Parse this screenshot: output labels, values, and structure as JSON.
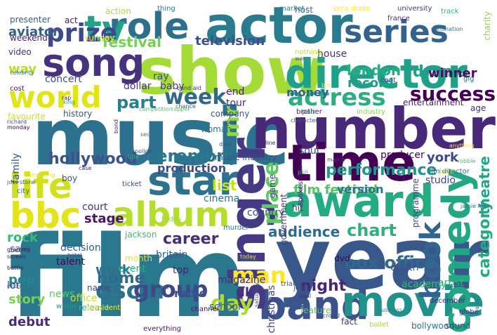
{
  "words": [
    {
      "text": "film",
      "color": "#2a788e"
    },
    {
      "text": "music",
      "color": "#2c728e"
    },
    {
      "text": "year",
      "color": "#38588c"
    },
    {
      "text": "show",
      "color": "#a5db36"
    },
    {
      "text": "number",
      "color": "#482878"
    },
    {
      "text": "actor",
      "color": "#287c8e"
    },
    {
      "text": "time",
      "color": "#440154"
    },
    {
      "text": "band",
      "color": "#3b528b"
    },
    {
      "text": "movie",
      "color": "#21918c"
    },
    {
      "text": "award",
      "color": "#25ab82"
    },
    {
      "text": "director",
      "color": "#1fa088"
    },
    {
      "text": "star",
      "color": "#2c728e"
    },
    {
      "text": "song",
      "color": "#46327e"
    },
    {
      "text": "singer",
      "color": "#443a83"
    },
    {
      "text": "album",
      "color": "#b5de2b"
    },
    {
      "text": "bbc",
      "color": "#e2e418"
    },
    {
      "text": "life",
      "color": "#d0e11c"
    },
    {
      "text": "role",
      "color": "#2d708e"
    },
    {
      "text": "tv",
      "color": "#20a386"
    },
    {
      "text": "series",
      "color": "#33638d"
    },
    {
      "text": "comedy",
      "color": "#22a785"
    },
    {
      "text": "world",
      "color": "#e2e418"
    },
    {
      "text": "prize",
      "color": "#3e4989"
    },
    {
      "text": "oscar",
      "color": "#2e6e8e"
    },
    {
      "text": "actress",
      "color": "#2ab07f"
    },
    {
      "text": "book",
      "color": "#32658e"
    },
    {
      "text": "place",
      "color": "#5ec962"
    },
    {
      "text": "success",
      "color": "#440154"
    },
    {
      "text": "week",
      "color": "#31688e"
    },
    {
      "text": "group",
      "color": "#3e4989"
    },
    {
      "text": "ceremony",
      "color": "#2a788e"
    },
    {
      "text": "hollywood",
      "color": "#3b528b"
    },
    {
      "text": "category",
      "color": "#25ab82"
    },
    {
      "text": "day",
      "color": "#addc30"
    },
    {
      "text": "man",
      "color": "#fde725"
    },
    {
      "text": "mr",
      "color": "#93d741"
    },
    {
      "text": "part",
      "color": "#26818e"
    },
    {
      "text": "performance",
      "color": "#1f968b"
    },
    {
      "text": "career",
      "color": "#472d7b"
    },
    {
      "text": "box office",
      "color": "#31688e"
    },
    {
      "text": "chart",
      "color": "#2db27d"
    },
    {
      "text": "home",
      "color": "#30698e"
    },
    {
      "text": "festival",
      "color": "#75d054"
    },
    {
      "text": "television",
      "color": "#3b528b"
    },
    {
      "text": "london",
      "color": "#26ad81"
    },
    {
      "text": "drama",
      "color": "#1fa088"
    },
    {
      "text": "winner",
      "color": "#471063"
    },
    {
      "text": "record",
      "color": "#1f9f88"
    },
    {
      "text": "theatre",
      "color": "#22a785"
    },
    {
      "text": "york",
      "color": "#3f4788"
    },
    {
      "text": "stage",
      "color": "#481467"
    },
    {
      "text": "work",
      "color": "#2e6f8e"
    },
    {
      "text": "night",
      "color": "#482576"
    },
    {
      "text": "audience",
      "color": "#31688e"
    },
    {
      "text": "aviator",
      "color": "#34608d"
    },
    {
      "text": "money",
      "color": "#34618d"
    },
    {
      "text": "list",
      "color": "#c2df23"
    },
    {
      "text": "film festival",
      "color": "#52c569"
    },
    {
      "text": "version",
      "color": "#2c728e"
    },
    {
      "text": "production",
      "color": "#3e4989"
    },
    {
      "text": "radio",
      "color": "#3a548c"
    },
    {
      "text": "rock",
      "color": "#38b977"
    },
    {
      "text": "pop",
      "color": "#25838e"
    },
    {
      "text": "story",
      "color": "#7ad151"
    },
    {
      "text": "debut",
      "color": "#472c7a"
    },
    {
      "text": "uk",
      "color": "#46307e"
    },
    {
      "text": "way",
      "color": "#b8de29"
    },
    {
      "text": "dollar",
      "color": "#453882"
    },
    {
      "text": "baby",
      "color": "#433e85"
    },
    {
      "text": "ray",
      "color": "#3b528b"
    },
    {
      "text": "concert",
      "color": "#3e4c8a"
    },
    {
      "text": "video",
      "color": "#472c7a"
    },
    {
      "text": "end",
      "color": "#482071"
    },
    {
      "text": "tour",
      "color": "#46307e"
    },
    {
      "text": "soul",
      "color": "#3c4f8a"
    },
    {
      "text": "studio",
      "color": "#3f4788"
    },
    {
      "text": "court",
      "color": "#472d7b"
    },
    {
      "text": "producer",
      "color": "#440154"
    },
    {
      "text": "decision",
      "color": "#365c8d"
    },
    {
      "text": "talent",
      "color": "#450457"
    },
    {
      "text": "event",
      "color": "#26ad81"
    },
    {
      "text": "britain",
      "color": "#375a8c"
    },
    {
      "text": "top",
      "color": "#482374"
    },
    {
      "text": "house",
      "color": "#472f7d"
    },
    {
      "text": "cinema",
      "color": "#2c728e"
    },
    {
      "text": "hit",
      "color": "#481c6e"
    },
    {
      "text": "country",
      "color": "#404688"
    },
    {
      "text": "magazine",
      "color": "#482475"
    },
    {
      "text": "school",
      "color": "#375b8d"
    },
    {
      "text": "artist",
      "color": "#31b57b"
    },
    {
      "text": "academy",
      "color": "#3aba76"
    },
    {
      "text": "death",
      "color": "#3b528b"
    },
    {
      "text": "christmas",
      "color": "#424186"
    },
    {
      "text": "lot",
      "color": "#404588"
    },
    {
      "text": "news",
      "color": "#58c765"
    },
    {
      "text": "office",
      "color": "#c8e020"
    },
    {
      "text": "release",
      "color": "#3aba76"
    },
    {
      "text": "sale",
      "color": "#31678e"
    },
    {
      "text": "family",
      "color": "#3b528b"
    },
    {
      "text": "act",
      "color": "#481668"
    },
    {
      "text": "weekend",
      "color": "#481769"
    },
    {
      "text": "sunday",
      "color": "#ffe724"
    },
    {
      "text": "action",
      "color": "#b0dd2f"
    },
    {
      "text": "entertainment",
      "color": "#481a6c"
    },
    {
      "text": "age",
      "color": "#472a7a"
    },
    {
      "text": "programme",
      "color": "#414487"
    },
    {
      "text": "jackson",
      "color": "#3fbc73"
    },
    {
      "text": "month",
      "color": "#e7e419"
    },
    {
      "text": "dvd",
      "color": "#440154"
    },
    {
      "text": "game",
      "color": "#433e85"
    },
    {
      "text": "charity",
      "color": "#93d741"
    },
    {
      "text": "history",
      "color": "#3b528b"
    },
    {
      "text": "favourite",
      "color": "#cde11d"
    },
    {
      "text": "name",
      "color": "#3e4a89"
    },
    {
      "text": "writer",
      "color": "#1f998a"
    },
    {
      "text": "channel",
      "color": "#470e61"
    },
    {
      "text": "music industry",
      "color": "#3e4c8a"
    },
    {
      "text": "woman",
      "color": "#2a788e"
    },
    {
      "text": "company",
      "color": "#3a548c"
    },
    {
      "text": "government",
      "color": "#443983"
    },
    {
      "text": "industry",
      "color": "#8bd646"
    },
    {
      "text": "brother",
      "color": "#48186a"
    },
    {
      "text": "pair",
      "color": "#2a768e"
    },
    {
      "text": "film director",
      "color": "#2c718e"
    },
    {
      "text": "love",
      "color": "#a8db34"
    },
    {
      "text": "fact",
      "color": "#472c7a"
    },
    {
      "text": "ballet",
      "color": "#a0da39"
    },
    {
      "text": "bollywood",
      "color": "#2b748e"
    },
    {
      "text": "sound",
      "color": "#3f4889"
    },
    {
      "text": "globe",
      "color": "#46337f"
    },
    {
      "text": "trial",
      "color": "#38588c"
    },
    {
      "text": "feature",
      "color": "#5ec962"
    },
    {
      "text": "president",
      "color": "#fde725"
    },
    {
      "text": "everything",
      "color": "#481668"
    },
    {
      "text": "murder",
      "color": "#2c728e"
    },
    {
      "text": "ticket",
      "color": "#3f4889"
    },
    {
      "text": "friday",
      "color": "#8fd744"
    },
    {
      "text": "boy",
      "color": "#3b528b"
    },
    {
      "text": "city",
      "color": "#2e6e8e"
    },
    {
      "text": "spokesman",
      "color": "#481f70"
    },
    {
      "text": "gig",
      "color": "#2c728e"
    },
    {
      "text": "cent",
      "color": "#3a548c"
    },
    {
      "text": "track",
      "color": "#2db27d"
    },
    {
      "text": "university",
      "color": "#433d84"
    },
    {
      "text": "host",
      "color": "#33638d"
    },
    {
      "text": "france",
      "color": "#472f7d"
    },
    {
      "text": "vera drake",
      "color": "#fde725"
    },
    {
      "text": "market",
      "color": "#25848e"
    },
    {
      "text": "thing",
      "color": "#2c728e"
    },
    {
      "text": "presenter",
      "color": "#34618d"
    },
    {
      "text": "nothing",
      "color": "#c2df23"
    },
    {
      "text": "war",
      "color": "#3b528b"
    },
    {
      "text": "celebrity",
      "color": "#2a788e"
    },
    {
      "text": "rap",
      "color": "#481769"
    },
    {
      "text": "king",
      "color": "#1f9e89"
    },
    {
      "text": "band aid",
      "color": "#46327e"
    },
    {
      "text": "competition",
      "color": "#4ec36b"
    },
    {
      "text": "rapper",
      "color": "#5ec962"
    },
    {
      "text": "richard",
      "color": "#3b528b"
    },
    {
      "text": "monday",
      "color": "#440154"
    },
    {
      "text": "sequel",
      "color": "#2c728e"
    },
    {
      "text": "june",
      "color": "#404588"
    },
    {
      "text": "date",
      "color": "#3a548c"
    },
    {
      "text": "police",
      "color": "#3e4989"
    },
    {
      "text": "title",
      "color": "#38b977"
    },
    {
      "text": "case",
      "color": "#481c6e"
    },
    {
      "text": "something",
      "color": "#e5e419"
    },
    {
      "text": "joss stone",
      "color": "#365d8d"
    },
    {
      "text": "grammy",
      "color": "#46075a"
    },
    {
      "text": "screen",
      "color": "#482173"
    },
    {
      "text": "battle",
      "color": "#48186a"
    },
    {
      "text": "michael",
      "color": "#2d708e"
    },
    {
      "text": "hotel",
      "color": "#3b528b"
    },
    {
      "text": "today",
      "color": "#fde725"
    },
    {
      "text": "dance",
      "color": "#2c728e"
    },
    {
      "text": "saturday",
      "color": "#3e4c8a"
    },
    {
      "text": "john",
      "color": "#3b528b"
    },
    {
      "text": "deal",
      "color": "#472f7d"
    },
    {
      "text": "lee",
      "color": "#2a788e"
    },
    {
      "text": "december",
      "color": "#482878"
    },
    {
      "text": "play",
      "color": "#1f998a"
    },
    {
      "text": "business",
      "color": "#27808e"
    },
    {
      "text": "crowd",
      "color": "#3e4c8a"
    },
    {
      "text": "balta",
      "color": "#27808e"
    },
    {
      "text": "jamie foxx",
      "color": "#2c728e"
    },
    {
      "text": "robbie",
      "color": "#3fbc73"
    },
    {
      "text": "anything",
      "color": "#fde725"
    },
    {
      "text": "poll",
      "color": "#35b779"
    },
    {
      "text": "march",
      "color": "#3f4788"
    },
    {
      "text": "nomination",
      "color": "#2c728e"
    },
    {
      "text": "brit",
      "color": "#fde725"
    },
    {
      "text": "chance",
      "color": "#38588c"
    },
    {
      "text": "bond",
      "color": "#481467"
    },
    {
      "text": "character",
      "color": "#3b528b"
    },
    {
      "text": "line",
      "color": "#482475"
    },
    {
      "text": "cost",
      "color": "#470e61"
    },
    {
      "text": "video",
      "color": "#481c6e"
    }
  ]
}
